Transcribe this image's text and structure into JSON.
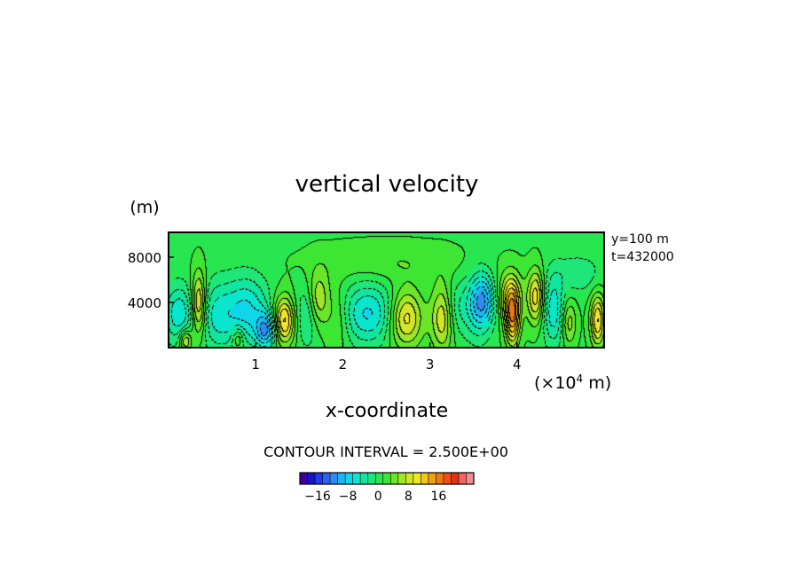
{
  "chart_data": {
    "type": "heatmap",
    "title": "vertical velocity",
    "xlabel": "x-coordinate",
    "ylabel_unit": "(m)",
    "x_unit_label": "(×10",
    "x_unit_exp": "4",
    "x_unit_suffix": " m)",
    "xlim": [
      0,
      5.0
    ],
    "ylim": [
      0,
      10200
    ],
    "x_ticks": [
      {
        "value": 1,
        "label": "1"
      },
      {
        "value": 2,
        "label": "2"
      },
      {
        "value": 3,
        "label": "3"
      },
      {
        "value": 4,
        "label": "4"
      }
    ],
    "y_ticks": [
      {
        "value": 4000,
        "label": "4000"
      },
      {
        "value": 8000,
        "label": "8000"
      }
    ],
    "info_lines": [
      "y=100 m",
      "t=432000"
    ],
    "contour_interval_text": "CONTOUR INTERVAL = 2.500E+00",
    "colorbar": {
      "colors": [
        "#3a00a0",
        "#1414c8",
        "#1e3ce6",
        "#2864f0",
        "#2c8cf0",
        "#20b4f0",
        "#10d6ec",
        "#0ae6cc",
        "#10e6a0",
        "#1ee678",
        "#28e650",
        "#3ce632",
        "#6ae628",
        "#a0e628",
        "#d2e628",
        "#f0e628",
        "#f0c81e",
        "#f0a014",
        "#f07814",
        "#f05014",
        "#e63214",
        "#f06464",
        "#f08c96"
      ],
      "labels": [
        {
          "index": 2,
          "text": "−16"
        },
        {
          "index": 6,
          "text": "−8"
        },
        {
          "index": 10,
          "text": "0"
        },
        {
          "index": 14,
          "text": "8"
        },
        {
          "index": 18,
          "text": "16"
        }
      ]
    },
    "features": [
      {
        "x": 0.12,
        "z": 3000,
        "value": -9,
        "sx": 0.12,
        "sz": 1800
      },
      {
        "x": 0.35,
        "z": 3800,
        "value": 13,
        "sx": 0.06,
        "sz": 2000
      },
      {
        "x": 0.2,
        "z": 600,
        "value": 10,
        "sx": 0.05,
        "sz": 700
      },
      {
        "x": 0.55,
        "z": 2800,
        "value": -7,
        "sx": 0.15,
        "sz": 2200
      },
      {
        "x": 0.9,
        "z": 3200,
        "value": -10,
        "sx": 0.18,
        "sz": 2200
      },
      {
        "x": 0.8,
        "z": 800,
        "value": 7,
        "sx": 0.05,
        "sz": 700
      },
      {
        "x": 1.12,
        "z": 1500,
        "value": -13,
        "sx": 0.08,
        "sz": 1100
      },
      {
        "x": 1.33,
        "z": 2400,
        "value": 14,
        "sx": 0.09,
        "sz": 1500
      },
      {
        "x": 1.6,
        "z": 2900,
        "value": -6,
        "sx": 0.1,
        "sz": 2000
      },
      {
        "x": 1.72,
        "z": 4200,
        "value": 9,
        "sx": 0.09,
        "sz": 1800
      },
      {
        "x": 1.95,
        "z": 2600,
        "value": 5,
        "sx": 0.1,
        "sz": 2000
      },
      {
        "x": 2.3,
        "z": 3000,
        "value": -10,
        "sx": 0.25,
        "sz": 1900
      },
      {
        "x": 2.72,
        "z": 2600,
        "value": 13,
        "sx": 0.14,
        "sz": 1800
      },
      {
        "x": 3.15,
        "z": 2700,
        "value": 11,
        "sx": 0.09,
        "sz": 2100
      },
      {
        "x": 3.3,
        "z": 3500,
        "value": -5,
        "sx": 0.12,
        "sz": 1800
      },
      {
        "x": 3.55,
        "z": 3600,
        "value": -6,
        "sx": 0.1,
        "sz": 2200
      },
      {
        "x": 3.62,
        "z": 4200,
        "value": -11,
        "sx": 0.1,
        "sz": 1600
      },
      {
        "x": 3.92,
        "z": 4700,
        "value": 9,
        "sx": 0.1,
        "sz": 1500
      },
      {
        "x": 3.95,
        "z": 2600,
        "value": 16,
        "sx": 0.06,
        "sz": 1700
      },
      {
        "x": 4.22,
        "z": 4500,
        "value": 12,
        "sx": 0.07,
        "sz": 1700
      },
      {
        "x": 4.42,
        "z": 3300,
        "value": -9,
        "sx": 0.09,
        "sz": 2200
      },
      {
        "x": 4.6,
        "z": 2200,
        "value": 7,
        "sx": 0.06,
        "sz": 1400
      },
      {
        "x": 4.93,
        "z": 2400,
        "value": 13,
        "sx": 0.06,
        "sz": 1600
      },
      {
        "x": 2.5,
        "z": 7500,
        "value": 3,
        "sx": 0.6,
        "sz": 1200
      },
      {
        "x": 4.7,
        "z": 6500,
        "value": -4,
        "sx": 0.2,
        "sz": 1200
      }
    ]
  }
}
